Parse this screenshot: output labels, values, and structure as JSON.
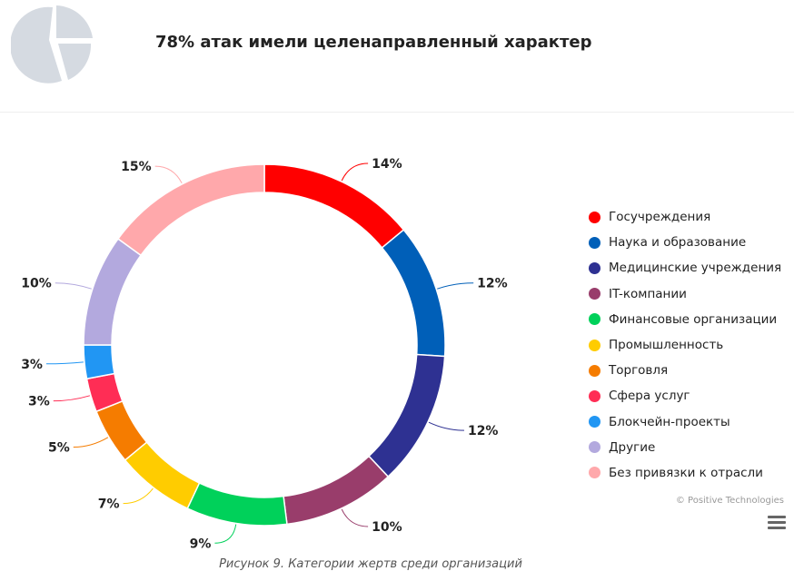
{
  "header": {
    "title": "78% атак имели целенаправленный характер",
    "icon": "pie-chart-icon"
  },
  "chart_data": {
    "type": "pie",
    "donut": true,
    "categories": [
      "Госучреждения",
      "Наука и образование",
      "Медицинские учреждения",
      "IT-компании",
      "Финансовые организации",
      "Промышленность",
      "Торговля",
      "Сфера услуг",
      "Блокчейн-проекты",
      "Другие",
      "Без привязки к отрасли"
    ],
    "values": [
      14,
      12,
      12,
      10,
      9,
      7,
      5,
      3,
      3,
      10,
      15
    ],
    "labels": [
      "14%",
      "12%",
      "12%",
      "10%",
      "9%",
      "7%",
      "5%",
      "3%",
      "3%",
      "10%",
      "15%"
    ],
    "colors": [
      "#ff0000",
      "#005fb8",
      "#2e3192",
      "#993d6b",
      "#00d15a",
      "#ffcc00",
      "#f57c00",
      "#ff2d55",
      "#2196f3",
      "#b3a9de",
      "#ffa8ab"
    ],
    "legend_position": "right",
    "caption": "Рисунок 9. Категории жертв среди организаций"
  },
  "credits": "© Positive Technologies",
  "menu_icon": "hamburger-menu-icon"
}
